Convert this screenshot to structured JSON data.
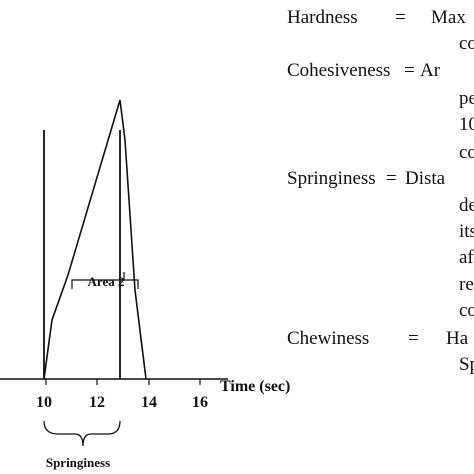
{
  "diagram": {
    "tick_labels": [
      "10",
      "12",
      "14",
      "16"
    ],
    "axis_label": "Time (sec)",
    "area_label": "Area 2",
    "springiness_label": "Springiness",
    "line_color": "#111111"
  },
  "definitions": [
    {
      "term": "Hardness",
      "sep": "=",
      "lines": [
        "Max",
        "co"
      ]
    },
    {
      "term": "Cohesiveness",
      "sep": "=",
      "lines": [
        "Ar",
        "pe",
        "10",
        "co"
      ]
    },
    {
      "term": "Springiness",
      "sep": "=",
      "lines": [
        "Dista",
        "de",
        "its",
        "af",
        "re",
        "co"
      ]
    },
    {
      "term": "Chewiness",
      "sep": "=",
      "lines": [
        "Ha",
        "Sp"
      ]
    }
  ]
}
